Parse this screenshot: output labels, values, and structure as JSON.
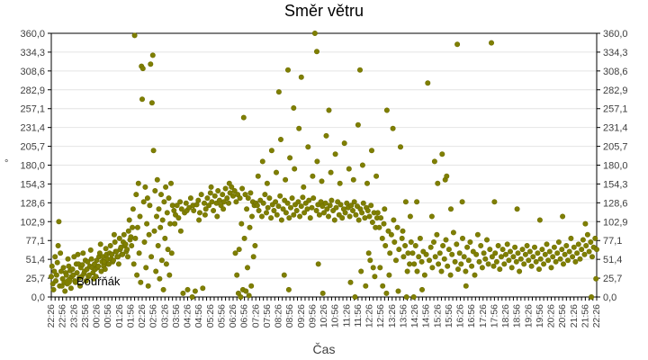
{
  "chart_data": {
    "type": "scatter",
    "title": "Směr větru",
    "xlabel": "Čas",
    "ylabel": "°",
    "legend_position": "inside-bottom-left",
    "grid": "horizontal-light",
    "marker_color": "#7f7f00",
    "marker_edge_color": "#6e6e00",
    "ylim": [
      0,
      360
    ],
    "y_ticklabels": [
      "0,0",
      "25,7",
      "51,4",
      "77,1",
      "102,9",
      "128,6",
      "154,3",
      "180,0",
      "205,7",
      "231,4",
      "257,1",
      "282,9",
      "308,6",
      "334,3",
      "360,0"
    ],
    "y_tick_values": [
      0,
      25.7,
      51.4,
      77.1,
      102.9,
      128.6,
      154.3,
      180.0,
      205.7,
      231.4,
      257.1,
      282.9,
      308.6,
      334.3,
      360.0
    ],
    "x_range_minutes": [
      0,
      1440
    ],
    "x_label_step_minutes": 30,
    "x_minor_tick_minutes": 10,
    "x_ticklabels": [
      "22:26",
      "22:56",
      "23:26",
      "23:56",
      "00:26",
      "00:56",
      "01:26",
      "01:56",
      "02:26",
      "02:56",
      "03:26",
      "03:56",
      "04:26",
      "04:56",
      "05:26",
      "05:56",
      "06:26",
      "06:56",
      "07:26",
      "07:56",
      "08:26",
      "08:56",
      "09:26",
      "09:56",
      "10:26",
      "10:56",
      "11:26",
      "11:56",
      "12:26",
      "12:56",
      "13:26",
      "13:56",
      "14:26",
      "14:56",
      "15:26",
      "15:56",
      "16:26",
      "16:56",
      "17:26",
      "17:56",
      "18:26",
      "18:56",
      "19:26",
      "19:56",
      "20:26",
      "20:56",
      "21:26",
      "21:56",
      "22:26"
    ],
    "series": [
      {
        "name": "Bouřňák",
        "points_format": "flat array [t,v,t,v,...] t = minutes after 22:26, v = wind direction in degrees (estimated from pixels)",
        "points": [
          0,
          28,
          2,
          42,
          4,
          18,
          6,
          10,
          8,
          35,
          10,
          55,
          12,
          22,
          14,
          30,
          16,
          47,
          18,
          70,
          20,
          103,
          22,
          15,
          24,
          60,
          26,
          35,
          28,
          15,
          30,
          25,
          32,
          40,
          34,
          20,
          36,
          8,
          38,
          33,
          40,
          30,
          42,
          18,
          44,
          52,
          46,
          42,
          48,
          24,
          50,
          36,
          52,
          12,
          54,
          28,
          56,
          38,
          58,
          30,
          60,
          55,
          62,
          22,
          64,
          20,
          66,
          45,
          68,
          33,
          70,
          58,
          72,
          45,
          74,
          26,
          76,
          15,
          78,
          40,
          80,
          28,
          82,
          44,
          84,
          60,
          86,
          32,
          88,
          35,
          90,
          50,
          92,
          22,
          94,
          38,
          96,
          48,
          98,
          28,
          100,
          30,
          102,
          42,
          104,
          64,
          106,
          52,
          108,
          40,
          110,
          33,
          112,
          25,
          114,
          45,
          116,
          38,
          118,
          28,
          120,
          50,
          122,
          40,
          124,
          42,
          126,
          55,
          128,
          60,
          130,
          72,
          132,
          35,
          134,
          48,
          136,
          55,
          138,
          42,
          140,
          48,
          142,
          38,
          144,
          66,
          146,
          58,
          148,
          52,
          150,
          45,
          152,
          45,
          154,
          60,
          156,
          70,
          158,
          52,
          160,
          58,
          162,
          48,
          164,
          50,
          166,
          85,
          168,
          75,
          170,
          62,
          172,
          62,
          174,
          55,
          176,
          55,
          178,
          45,
          180,
          80,
          182,
          65,
          184,
          68,
          186,
          58,
          188,
          58,
          190,
          75,
          192,
          85,
          194,
          70,
          196,
          72,
          198,
          62,
          200,
          65,
          202,
          55,
          204,
          90,
          206,
          105,
          208,
          78,
          210,
          82,
          212,
          70,
          214,
          95,
          216,
          120,
          218,
          45,
          220,
          357,
          222,
          80,
          224,
          140,
          226,
          30,
          228,
          95,
          230,
          155,
          232,
          60,
          234,
          110,
          236,
          20,
          238,
          315,
          240,
          270,
          242,
          312,
          244,
          130,
          246,
          75,
          248,
          150,
          250,
          40,
          252,
          100,
          254,
          135,
          256,
          15,
          258,
          85,
          260,
          125,
          262,
          318,
          264,
          55,
          266,
          265,
          268,
          330,
          270,
          200,
          272,
          90,
          274,
          145,
          276,
          35,
          278,
          110,
          280,
          160,
          282,
          70,
          284,
          120,
          286,
          25,
          288,
          95,
          290,
          140,
          292,
          50,
          294,
          105,
          296,
          10,
          298,
          130,
          300,
          80,
          302,
          150,
          304,
          45,
          306,
          115,
          308,
          65,
          310,
          135,
          312,
          30,
          314,
          100,
          316,
          155,
          318,
          60,
          320,
          125,
          324,
          118,
          326,
          100,
          328,
          112,
          332,
          125,
          336,
          108,
          340,
          130,
          342,
          90,
          344,
          120,
          348,
          5,
          352,
          115,
          356,
          128,
          358,
          118,
          360,
          10,
          364,
          122,
          368,
          135,
          372,
          0,
          374,
          125,
          376,
          118,
          380,
          8,
          384,
          126,
          388,
          132,
          390,
          105,
          392,
          115,
          396,
          140,
          400,
          12,
          404,
          128,
          406,
          112,
          408,
          120,
          412,
          135,
          416,
          125,
          420,
          142,
          422,
          150,
          424,
          130,
          428,
          118,
          432,
          138,
          436,
          128,
          438,
          110,
          440,
          145,
          444,
          132,
          448,
          125,
          452,
          140,
          454,
          120,
          456,
          130,
          460,
          148,
          464,
          135,
          468,
          128,
          470,
          155,
          472,
          142,
          476,
          150,
          480,
          138,
          484,
          145,
          486,
          60,
          488,
          130,
          490,
          30,
          492,
          140,
          494,
          5,
          496,
          65,
          498,
          135,
          500,
          0,
          502,
          100,
          504,
          148,
          506,
          10,
          508,
          245,
          510,
          80,
          512,
          140,
          514,
          8,
          516,
          120,
          518,
          40,
          520,
          135,
          522,
          2,
          524,
          95,
          526,
          142,
          528,
          15,
          530,
          110,
          532,
          130,
          534,
          55,
          536,
          125,
          538,
          70,
          540,
          128,
          544,
          125,
          548,
          118,
          552,
          132,
          556,
          110,
          560,
          128,
          564,
          140,
          568,
          115,
          572,
          122,
          576,
          135,
          580,
          108,
          584,
          126,
          588,
          118,
          592,
          130,
          596,
          112,
          600,
          124,
          604,
          138,
          608,
          105,
          612,
          120,
          616,
          132,
          620,
          115,
          624,
          128,
          628,
          108,
          632,
          122,
          636,
          135,
          640,
          112,
          644,
          126,
          648,
          118,
          652,
          130,
          656,
          110,
          660,
          124,
          664,
          136,
          668,
          115,
          672,
          128,
          676,
          120,
          680,
          132,
          684,
          108,
          688,
          122,
          692,
          135,
          696,
          360,
          700,
          118,
          704,
          126,
          708,
          112,
          712,
          130,
          716,
          124,
          720,
          115,
          724,
          128,
          728,
          120,
          732,
          110,
          736,
          125,
          740,
          132,
          744,
          118,
          748,
          105,
          752,
          122,
          756,
          130,
          760,
          112,
          764,
          126,
          768,
          108,
          772,
          120,
          776,
          115,
          780,
          128,
          784,
          122,
          788,
          110,
          792,
          125,
          796,
          118,
          800,
          130,
          804,
          112,
          808,
          124,
          812,
          105,
          816,
          120,
          820,
          115,
          824,
          128,
          828,
          108,
          832,
          122,
          836,
          118,
          840,
          110,
          844,
          125,
          848,
          102,
          852,
          115,
          856,
          95,
          860,
          108,
          546,
          165,
          558,
          185,
          570,
          155,
          582,
          200,
          594,
          170,
          606,
          215,
          618,
          160,
          630,
          190,
          642,
          175,
          654,
          230,
          666,
          150,
          678,
          205,
          690,
          165,
          702,
          185,
          714,
          158,
          726,
          220,
          738,
          170,
          750,
          195,
          762,
          155,
          774,
          210,
          786,
          175,
          798,
          160,
          810,
          235,
          822,
          180,
          834,
          155,
          846,
          200,
          858,
          165,
          601,
          280,
          625,
          310,
          640,
          258,
          660,
          300,
          701,
          335,
          733,
          255,
          815,
          310,
          615,
          30,
          627,
          10,
          705,
          45,
          717,
          5,
          790,
          20,
          802,
          0,
          818,
          35,
          830,
          15,
          842,
          50,
          854,
          28,
          838,
          60,
          850,
          40,
          862,
          115,
          866,
          95,
          868,
          40,
          870,
          108,
          874,
          80,
          875,
          15,
          878,
          100,
          880,
          120,
          882,
          70,
          885,
          5,
          886,
          255,
          890,
          90,
          892,
          30,
          894,
          60,
          898,
          85,
          902,
          230,
          904,
          105,
          906,
          75,
          910,
          50,
          914,
          95,
          916,
          8,
          918,
          65,
          922,
          205,
          926,
          80,
          928,
          90,
          930,
          55,
          934,
          70,
          936,
          130,
          938,
          0,
          940,
          35,
          942,
          60,
          946,
          45,
          948,
          110,
          950,
          75,
          954,
          60,
          958,
          45,
          962,
          70,
          966,
          35,
          970,
          55,
          974,
          80,
          978,
          48,
          982,
          62,
          986,
          30,
          990,
          58,
          994,
          292,
          998,
          50,
          1002,
          68,
          1006,
          40,
          1010,
          75,
          1014,
          55,
          1018,
          85,
          1022,
          45,
          1026,
          60,
          1030,
          35,
          1034,
          70,
          1038,
          52,
          1042,
          78,
          1046,
          42,
          1050,
          65,
          1054,
          30,
          1058,
          58,
          1062,
          88,
          1066,
          48,
          1070,
          72,
          1074,
          38,
          1078,
          60,
          1082,
          45,
          1086,
          80,
          1090,
          55,
          1094,
          35,
          1098,
          68,
          1102,
          50,
          1106,
          75,
          1110,
          42,
          1114,
          62,
          1118,
          30,
          1122,
          58,
          1126,
          85,
          1130,
          48,
          1134,
          70,
          1138,
          40,
          1142,
          60,
          1146,
          52,
          1150,
          78,
          1154,
          45,
          1158,
          65,
          957,
          0,
          965,
          130,
          979,
          10,
          1005,
          110,
          1012,
          185,
          1020,
          155,
          1032,
          195,
          1040,
          160,
          1044,
          165,
          1055,
          120,
          1072,
          345,
          1085,
          130,
          1095,
          15,
          1162,
          347,
          1164,
          55,
          1168,
          42,
          1172,
          60,
          1176,
          48,
          1180,
          70,
          1184,
          38,
          1188,
          55,
          1192,
          65,
          1196,
          45,
          1200,
          58,
          1204,
          72,
          1208,
          50,
          1212,
          62,
          1216,
          40,
          1220,
          55,
          1224,
          68,
          1228,
          48,
          1232,
          60,
          1236,
          35,
          1240,
          52,
          1244,
          65,
          1248,
          45,
          1252,
          58,
          1256,
          70,
          1260,
          50,
          1264,
          62,
          1268,
          42,
          1272,
          55,
          1276,
          68,
          1280,
          48,
          1284,
          60,
          1288,
          38,
          1292,
          52,
          1296,
          65,
          1300,
          45,
          1304,
          58,
          1308,
          72,
          1312,
          50,
          1316,
          62,
          1320,
          40,
          1324,
          55,
          1328,
          68,
          1332,
          48,
          1336,
          60,
          1340,
          75,
          1344,
          52,
          1348,
          65,
          1352,
          45,
          1356,
          58,
          1360,
          70,
          1364,
          50,
          1368,
          62,
          1372,
          80,
          1376,
          55,
          1380,
          68,
          1384,
          48,
          1388,
          60,
          1392,
          72,
          1396,
          52,
          1400,
          65,
          1404,
          78,
          1408,
          58,
          1412,
          70,
          1416,
          85,
          1420,
          62,
          1424,
          75,
          1428,
          55,
          1432,
          68,
          1436,
          80,
          1440,
          65,
          1170,
          130,
          1230,
          120,
          1290,
          105,
          1350,
          110,
          1410,
          100,
          1426,
          0,
          1438,
          25
        ]
      }
    ]
  }
}
